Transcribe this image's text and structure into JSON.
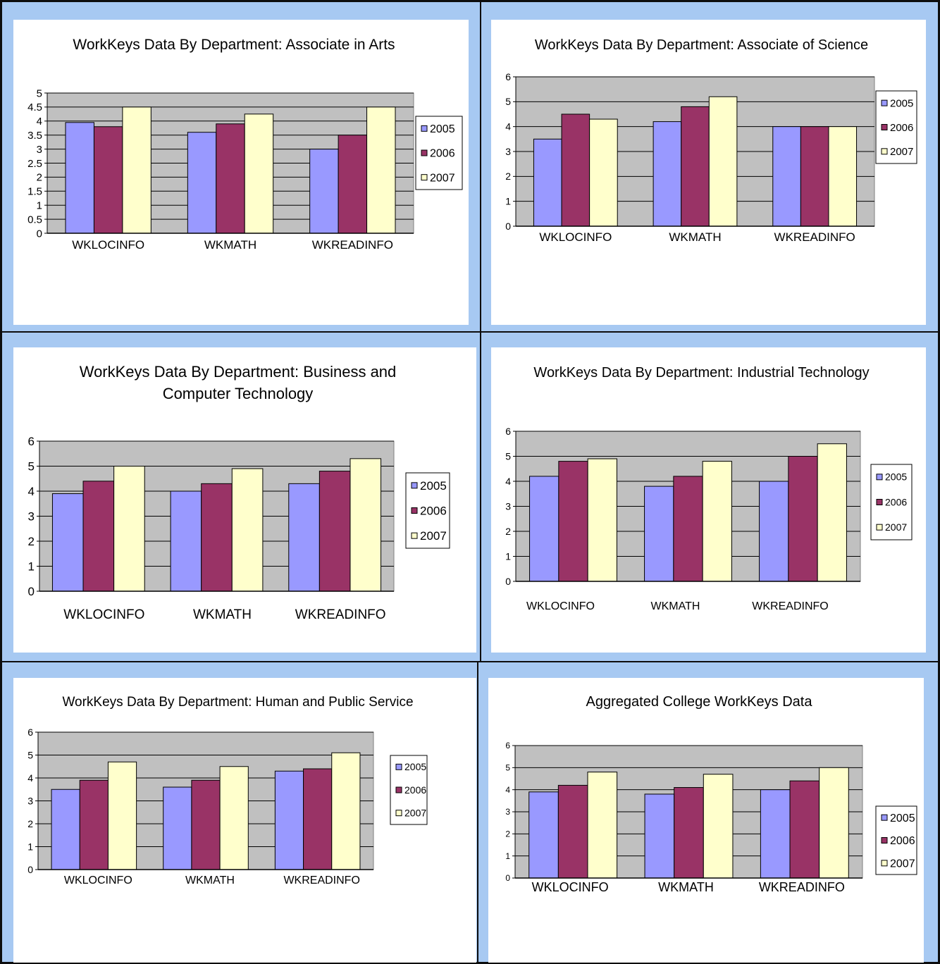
{
  "legend_colors": {
    "2005": "#9999ff",
    "2006": "#993366",
    "2007": "#ffffcc"
  },
  "plot_bg": "#c0c0c0",
  "chart_data": [
    {
      "type": "bar",
      "title": [
        "WorkKeys Data By Department: Associate in Arts"
      ],
      "categories": [
        "WKLOCINFO",
        "WKMATH",
        "WKREADINFO"
      ],
      "ylim": [
        0,
        5
      ],
      "yticks": [
        "0",
        "0.5",
        "1",
        "1.5",
        "2",
        "2.5",
        "3",
        "3.5",
        "4",
        "4.5",
        "5"
      ],
      "grid": true,
      "legend": "right",
      "series": [
        {
          "name": "2005",
          "values": [
            3.95,
            3.6,
            3.0
          ]
        },
        {
          "name": "2006",
          "values": [
            3.8,
            3.9,
            3.5
          ]
        },
        {
          "name": "2007",
          "values": [
            4.5,
            4.25,
            4.5
          ]
        }
      ]
    },
    {
      "type": "bar",
      "title": [
        "WorkKeys Data By Department: Associate of Science"
      ],
      "categories": [
        "WKLOCINFO",
        "WKMATH",
        "WKREADINFO"
      ],
      "ylim": [
        0,
        6
      ],
      "yticks": [
        "0",
        "1",
        "2",
        "3",
        "4",
        "5",
        "6"
      ],
      "grid": true,
      "legend": "right",
      "series": [
        {
          "name": "2005",
          "values": [
            3.5,
            4.2,
            4.0
          ]
        },
        {
          "name": "2006",
          "values": [
            4.5,
            4.8,
            4.0
          ]
        },
        {
          "name": "2007",
          "values": [
            4.3,
            5.2,
            4.0
          ]
        }
      ]
    },
    {
      "type": "bar",
      "title": [
        "WorkKeys Data By Department: Business and",
        "Computer Technology"
      ],
      "categories": [
        "WKLOCINFO",
        "WKMATH",
        "WKREADINFO"
      ],
      "ylim": [
        0,
        6
      ],
      "yticks": [
        "0",
        "1",
        "2",
        "3",
        "4",
        "5",
        "6"
      ],
      "grid": true,
      "legend": "right",
      "series": [
        {
          "name": "2005",
          "values": [
            3.9,
            4.0,
            4.3
          ]
        },
        {
          "name": "2006",
          "values": [
            4.4,
            4.3,
            4.8
          ]
        },
        {
          "name": "2007",
          "values": [
            5.0,
            4.9,
            5.3
          ]
        }
      ]
    },
    {
      "type": "bar",
      "title": [
        "WorkKeys Data By Department: Industrial Technology"
      ],
      "categories": [
        "WKLOCINFO",
        "WKMATH",
        "WKREADINFO"
      ],
      "ylim": [
        0,
        6
      ],
      "yticks": [
        "0",
        "1",
        "2",
        "3",
        "4",
        "5",
        "6"
      ],
      "grid": true,
      "legend": "right",
      "series": [
        {
          "name": "2005",
          "values": [
            4.2,
            3.8,
            4.0
          ]
        },
        {
          "name": "2006",
          "values": [
            4.8,
            4.2,
            5.0
          ]
        },
        {
          "name": "2007",
          "values": [
            4.9,
            4.8,
            5.5
          ]
        }
      ]
    },
    {
      "type": "bar",
      "title": [
        "WorkKeys Data By Department: Human and Public Service"
      ],
      "categories": [
        "WKLOCINFO",
        "WKMATH",
        "WKREADINFO"
      ],
      "ylim": [
        0,
        6
      ],
      "yticks": [
        "0",
        "1",
        "2",
        "3",
        "4",
        "5",
        "6"
      ],
      "grid": true,
      "legend": "right",
      "series": [
        {
          "name": "2005",
          "values": [
            3.5,
            3.6,
            4.3
          ]
        },
        {
          "name": "2006",
          "values": [
            3.9,
            3.9,
            4.4
          ]
        },
        {
          "name": "2007",
          "values": [
            4.7,
            4.5,
            5.1
          ]
        }
      ]
    },
    {
      "type": "bar",
      "title": [
        "Aggregated College WorkKeys Data"
      ],
      "categories": [
        "WKLOCINFO",
        "WKMATH",
        "WKREADINFO"
      ],
      "ylim": [
        0,
        6
      ],
      "yticks": [
        "0",
        "1",
        "2",
        "3",
        "4",
        "5",
        "6"
      ],
      "grid": true,
      "legend": "right",
      "series": [
        {
          "name": "2005",
          "values": [
            3.9,
            3.8,
            4.0
          ]
        },
        {
          "name": "2006",
          "values": [
            4.2,
            4.1,
            4.4
          ]
        },
        {
          "name": "2007",
          "values": [
            4.8,
            4.7,
            5.0
          ]
        }
      ]
    }
  ]
}
